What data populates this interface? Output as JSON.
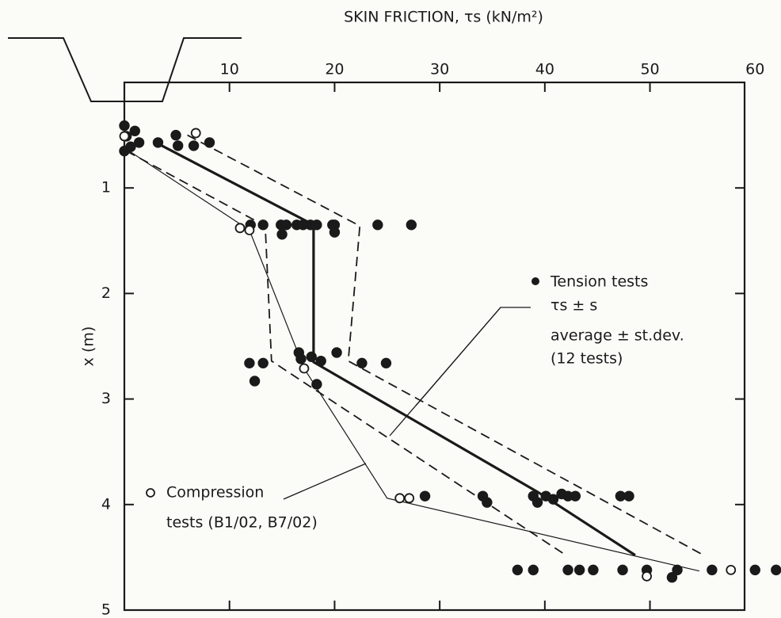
{
  "chart_data": {
    "type": "scatter",
    "title": "SKIN FRICTION, τs (kN/m²)",
    "y_label": "x (m)",
    "xlim": [
      0,
      59
    ],
    "xticks": [
      10,
      20,
      30,
      40,
      50,
      60
    ],
    "ylim": [
      0,
      5
    ],
    "yticks": [
      1,
      2,
      3,
      4,
      5
    ],
    "y_inverted": true,
    "x_axis_position": "top",
    "annotations": {
      "tension": [
        "Tension tests",
        "τs ± s",
        "average ± st.dev.",
        "(12 tests)"
      ],
      "compression": [
        "Compression",
        "tests (B1/02, B7/02)"
      ]
    },
    "series": [
      {
        "name": "Tension tests",
        "mode": "markers",
        "marker": "filled",
        "color": "#1a1a1a",
        "x": [
          0,
          1,
          0.2,
          1.4,
          0,
          0.6,
          3.2,
          4.9,
          5.1,
          6.6,
          8.1,
          12,
          13.2,
          14.9,
          15.4,
          16.4,
          17,
          17.7,
          18.3,
          19.8,
          20,
          24.1,
          27.3,
          15,
          20,
          11.9,
          13.2,
          16.6,
          16.8,
          17.8,
          18.7,
          20.2,
          22.6,
          24.9,
          12.4,
          18.3,
          28.6,
          34.1,
          34.5,
          38.9,
          39.3,
          40.1,
          40.8,
          41.6,
          42.2,
          42.9,
          47.2,
          48,
          37.4,
          38.9,
          42.2,
          43.3,
          44.6,
          47.4,
          49.7,
          52.6,
          55.9,
          60,
          62,
          52.1
        ],
        "values": [
          0.41,
          0.46,
          0.51,
          0.57,
          0.65,
          0.61,
          0.57,
          0.5,
          0.6,
          0.6,
          0.57,
          1.35,
          1.35,
          1.35,
          1.35,
          1.35,
          1.35,
          1.35,
          1.35,
          1.35,
          1.35,
          1.35,
          1.35,
          1.44,
          1.42,
          2.66,
          2.66,
          2.56,
          2.62,
          2.6,
          2.64,
          2.56,
          2.66,
          2.66,
          2.83,
          2.86,
          3.92,
          3.92,
          3.98,
          3.92,
          3.98,
          3.92,
          3.95,
          3.9,
          3.92,
          3.92,
          3.92,
          3.92,
          4.62,
          4.62,
          4.62,
          4.62,
          4.62,
          4.62,
          4.62,
          4.62,
          4.62,
          4.62,
          4.62,
          4.69
        ]
      },
      {
        "name": "Compression tests (B1/02, B7/02)",
        "mode": "markers",
        "marker": "open",
        "color": "#1a1a1a",
        "x": [
          0,
          6.8,
          11,
          11.9,
          17.1,
          26.2,
          27.1,
          49.7,
          57.7
        ],
        "values": [
          0.51,
          0.48,
          1.38,
          1.4,
          2.71,
          3.94,
          3.94,
          4.68,
          4.62
        ]
      },
      {
        "mode": "line",
        "dash": "solid",
        "width": 3.2,
        "color": "#1a1a1a",
        "x": [
          3,
          18,
          18,
          39.3,
          48.6
        ],
        "values": [
          0.57,
          1.35,
          2.65,
          3.88,
          4.48
        ]
      },
      {
        "mode": "line",
        "dash": "dashed",
        "width": 1.8,
        "color": "#1a1a1a",
        "x": [
          6,
          22.4,
          21.3,
          55.1
        ],
        "values": [
          0.5,
          1.36,
          2.64,
          4.48
        ]
      },
      {
        "mode": "line",
        "dash": "dashed",
        "width": 1.8,
        "color": "#1a1a1a",
        "x": [
          0.2,
          13.4,
          14,
          42
        ],
        "values": [
          0.65,
          1.36,
          2.64,
          4.48
        ]
      },
      {
        "mode": "line",
        "dash": "solid",
        "width": 1.2,
        "color": "#1a1a1a",
        "x": [
          0,
          11.9,
          17.1,
          25,
          54.7
        ],
        "values": [
          0.62,
          1.4,
          2.71,
          3.94,
          4.63
        ]
      }
    ]
  }
}
